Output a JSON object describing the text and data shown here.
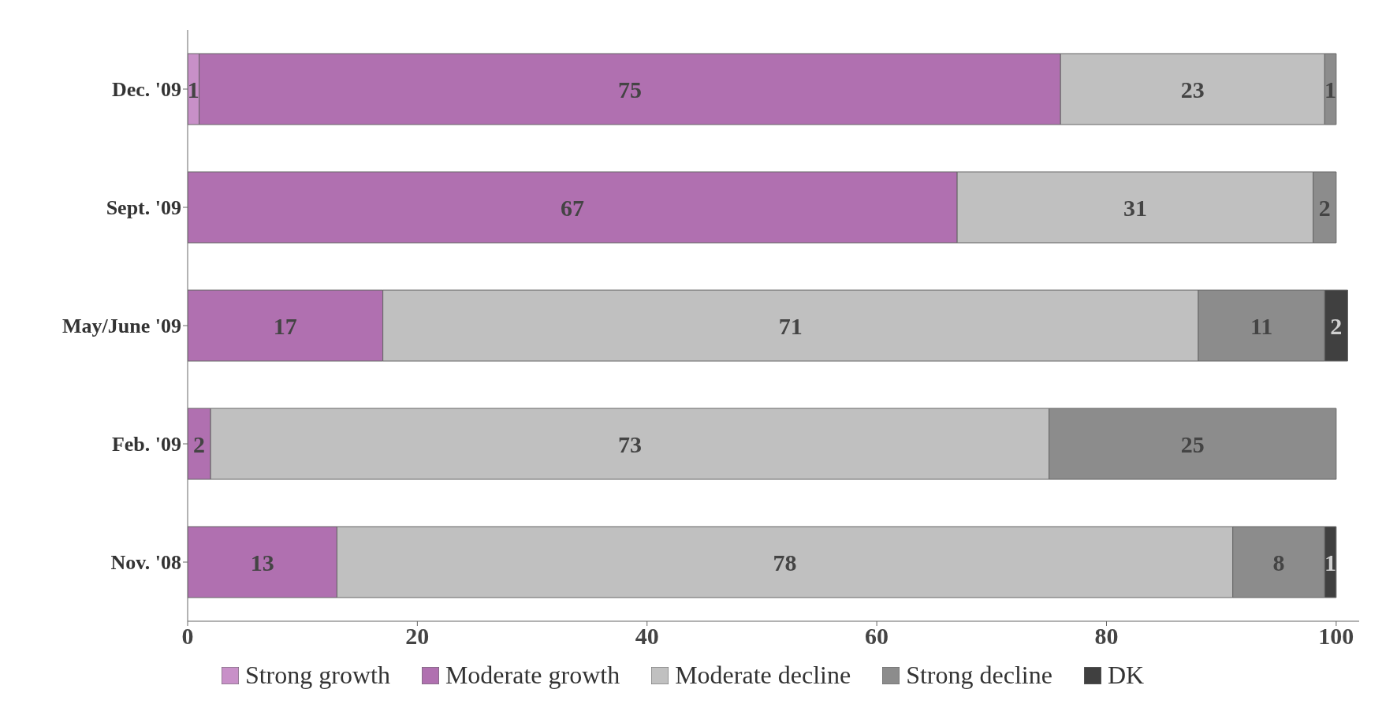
{
  "chart_data": {
    "type": "bar",
    "orientation": "horizontal",
    "stacked": true,
    "categories": [
      "Dec. '09",
      "Sept. '09",
      "May/June '09",
      "Feb. '09",
      "Nov. '08"
    ],
    "series": [
      {
        "name": "Strong growth",
        "color": "#c890c8",
        "values": [
          1,
          null,
          null,
          null,
          null
        ]
      },
      {
        "name": "Moderate growth",
        "color": "#b070b0",
        "values": [
          75,
          67,
          17,
          2,
          13
        ]
      },
      {
        "name": "Moderate decline",
        "color": "#c0c0c0",
        "values": [
          23,
          31,
          71,
          73,
          78
        ]
      },
      {
        "name": "Strong decline",
        "color": "#8c8c8c",
        "values": [
          1,
          2,
          11,
          25,
          8
        ]
      },
      {
        "name": "DK",
        "color": "#404040",
        "values": [
          null,
          null,
          2,
          null,
          1
        ]
      }
    ],
    "xlim": [
      0,
      102
    ],
    "xticks": [
      0,
      20,
      40,
      60,
      80,
      100
    ],
    "data_labels": true,
    "grid": false,
    "legend": "bottom"
  }
}
